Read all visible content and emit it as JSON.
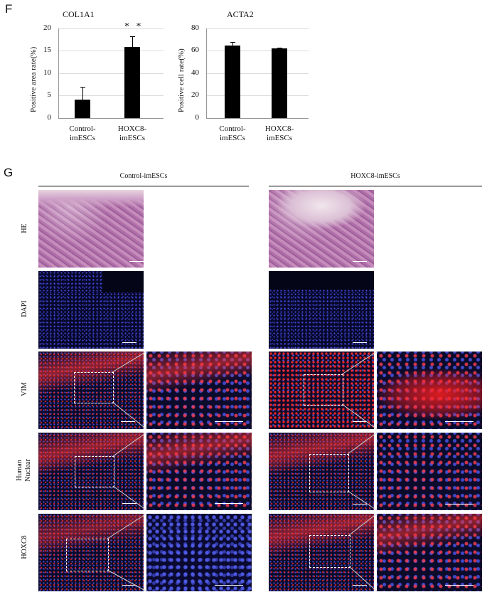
{
  "panel_f": {
    "letter": "F"
  },
  "panel_g": {
    "letter": "G"
  },
  "chart_data": [
    {
      "type": "bar",
      "title": "COL1A1",
      "ylabel": "Positive area rate(%)",
      "categories": [
        "Control-imESCs",
        "HOXC8-imESCs"
      ],
      "category_lines": [
        [
          "Control-",
          "imESCs"
        ],
        [
          "HOXC8-",
          "imESCs"
        ]
      ],
      "values": [
        4.2,
        15.8
      ],
      "errors": [
        2.8,
        2.5
      ],
      "ylim": [
        0,
        20
      ],
      "yticks": [
        "0",
        "5",
        "10",
        "15",
        "20"
      ],
      "significance": {
        "category": "HOXC8-imESCs",
        "label": "* *"
      },
      "grid": true
    },
    {
      "type": "bar",
      "title": "ACTA2",
      "ylabel": "Positive cell rate(%)",
      "categories": [
        "Control-imESCs",
        "HOXC8-imESCs"
      ],
      "category_lines": [
        [
          "Control-",
          "imESCs"
        ],
        [
          "HOXC8-",
          "imESCs"
        ]
      ],
      "values": [
        64.5,
        62.0
      ],
      "errors": [
        3.5,
        1.0
      ],
      "ylim": [
        0,
        80
      ],
      "yticks": [
        "0",
        "20",
        "40",
        "60",
        "80"
      ],
      "grid": true
    }
  ],
  "groups": [
    "Control-imESCs",
    "HOXC8-imESCs"
  ],
  "rows": [
    {
      "label": "HE"
    },
    {
      "label": "DAPI"
    },
    {
      "label": "VIM"
    },
    {
      "label": "Human\nNuclear"
    },
    {
      "label": "HOXC8"
    }
  ]
}
